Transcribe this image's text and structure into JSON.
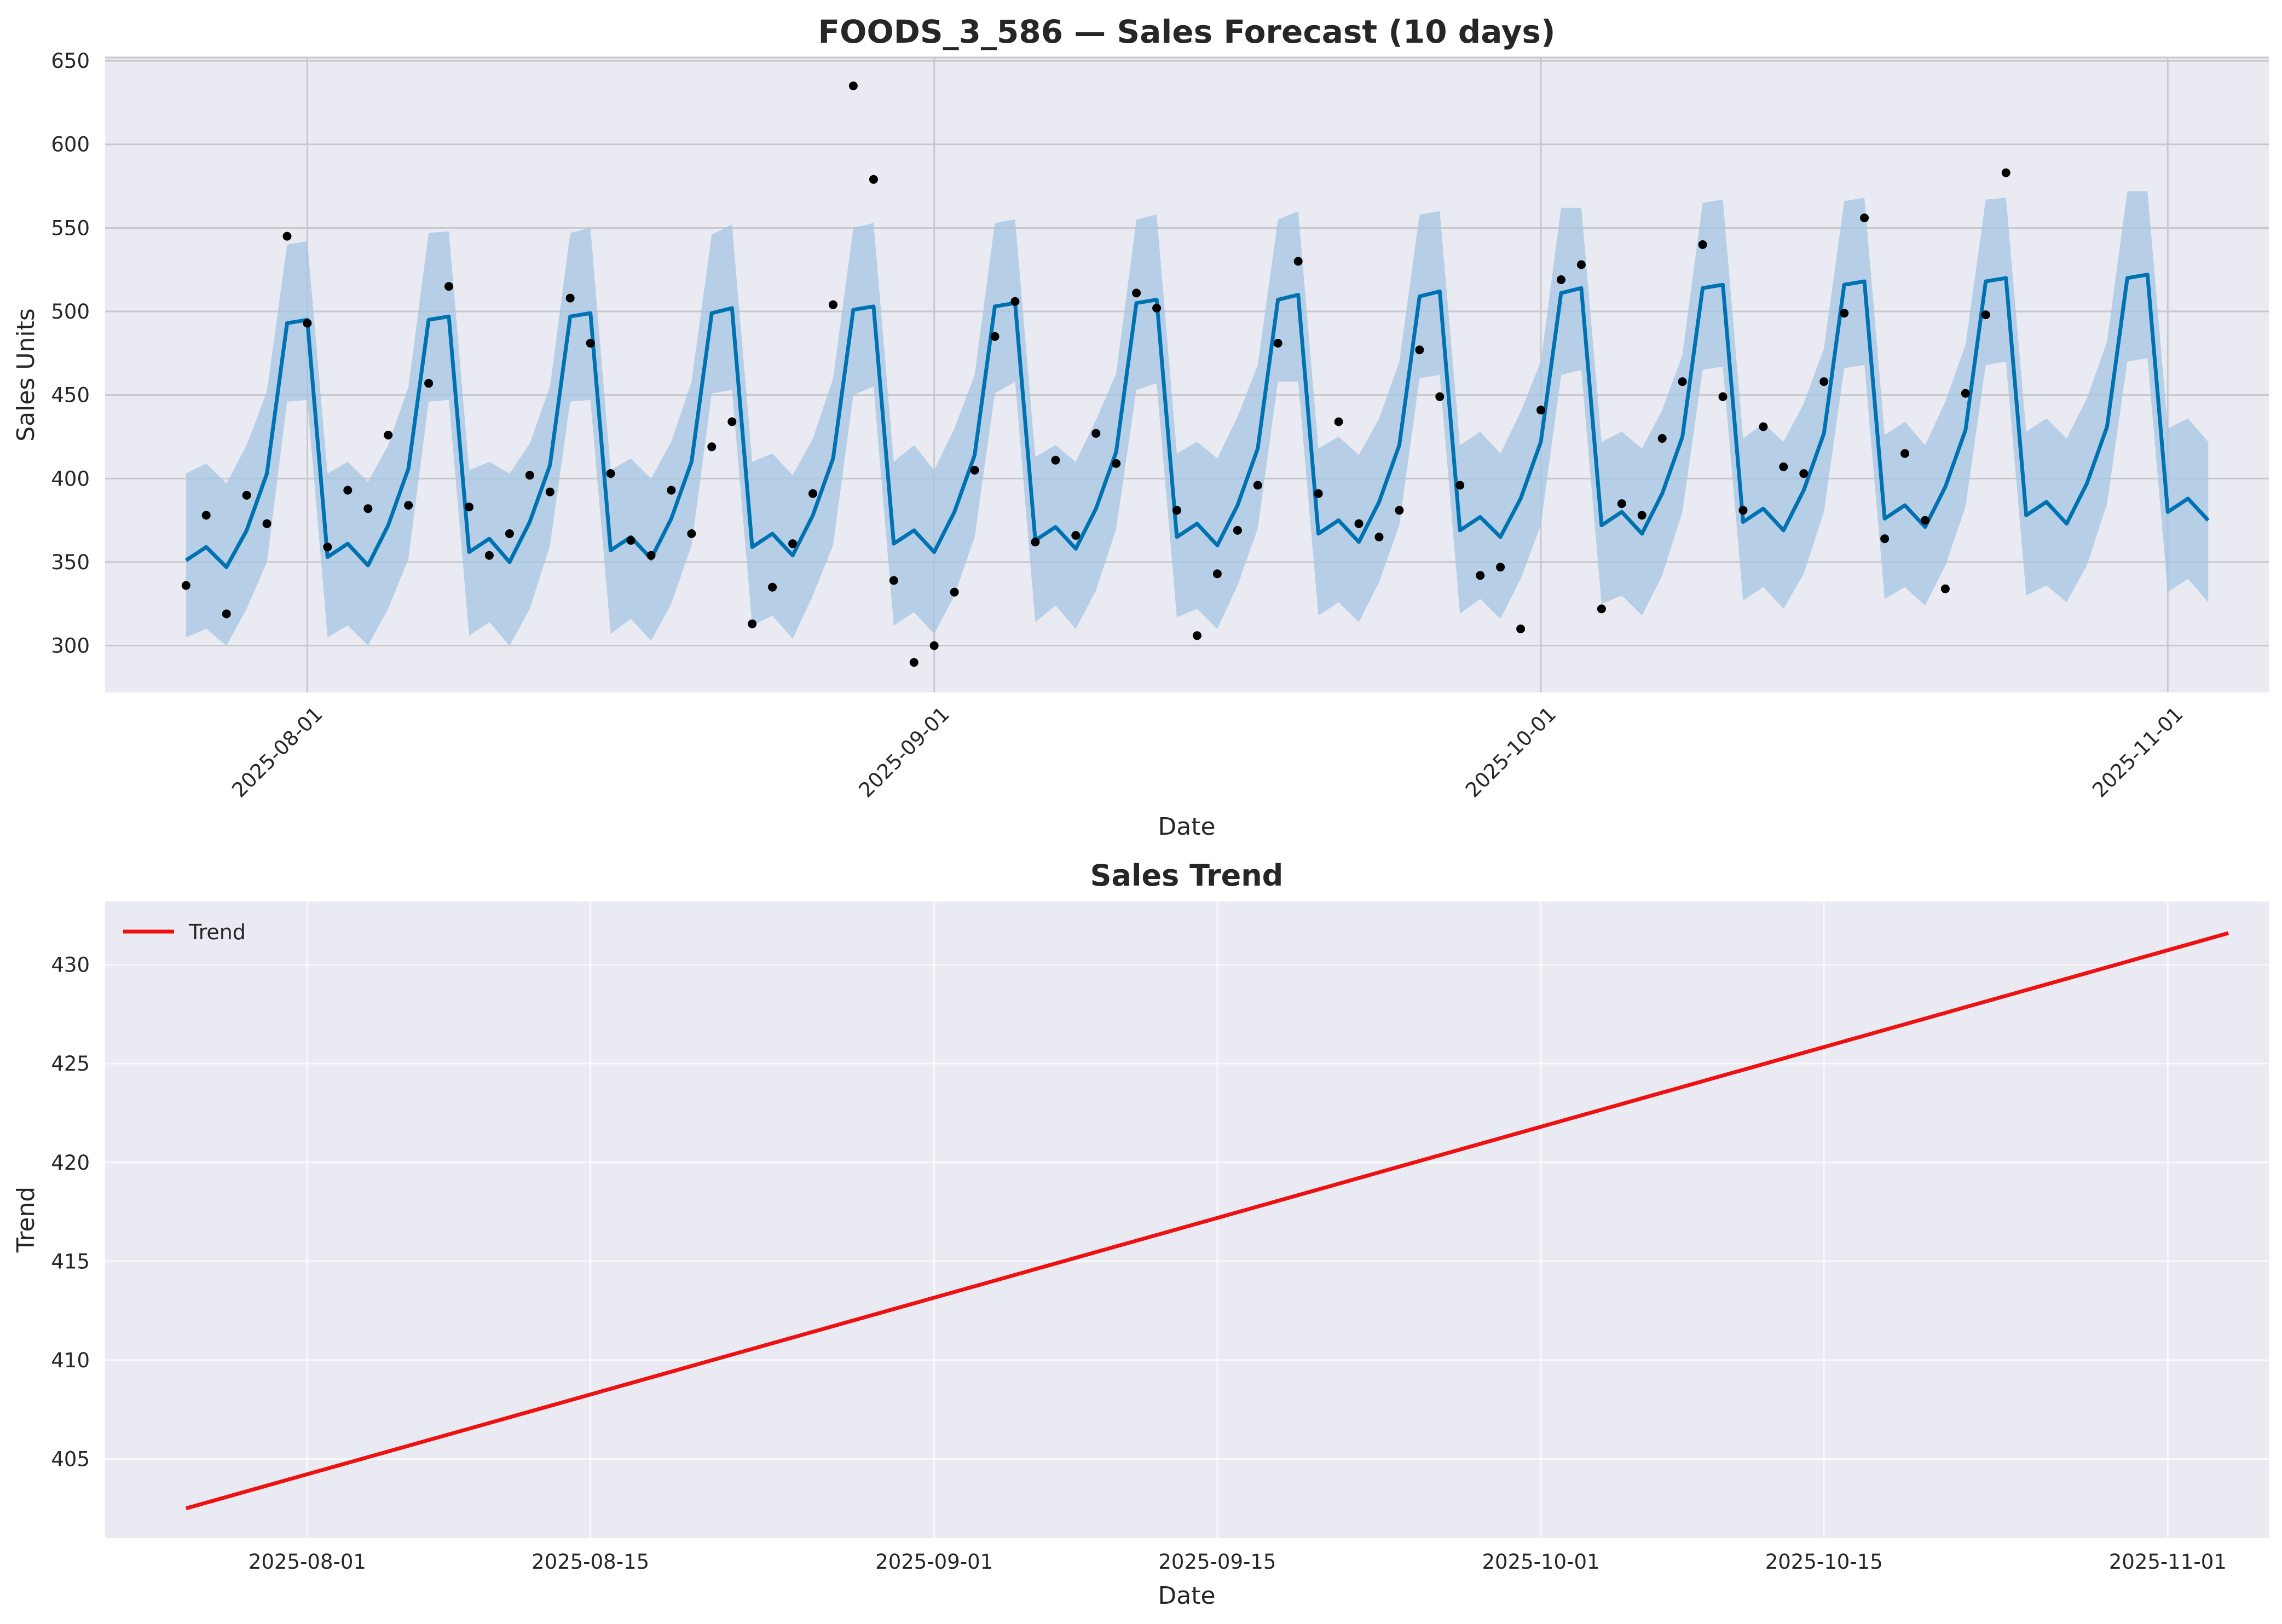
{
  "chart_data": [
    {
      "type": "line",
      "title": "FOODS_3_586 — Sales Forecast (10 days)",
      "xlabel": "Date",
      "ylabel": "Sales Units",
      "xlim": [
        "2025-07-22",
        "2025-11-06"
      ],
      "ylim": [
        272,
        652
      ],
      "xticks": [
        "2025-08-01",
        "2025-09-01",
        "2025-10-01",
        "2025-11-01"
      ],
      "yticks": [
        300,
        350,
        400,
        450,
        500,
        550,
        600,
        650
      ],
      "grid": true,
      "start_date": "2025-07-26",
      "colors": {
        "forecast": "#0072b2",
        "band": "#a6c6e1",
        "actual": "#000000",
        "background": "#eaeaf2",
        "grid": "#c8c8cc"
      },
      "series": [
        {
          "name": "yhat",
          "values": [
            351,
            359,
            347,
            369,
            403,
            493,
            495,
            353,
            361,
            348,
            372,
            406,
            495,
            497,
            356,
            364,
            350,
            374,
            408,
            497,
            499,
            357,
            365,
            352,
            376,
            410,
            499,
            502,
            359,
            367,
            354,
            378,
            412,
            501,
            503,
            361,
            369,
            356,
            380,
            414,
            503,
            505,
            363,
            371,
            358,
            382,
            416,
            505,
            507,
            365,
            373,
            360,
            384,
            418,
            507,
            510,
            367,
            375,
            362,
            386,
            420,
            509,
            512,
            369,
            377,
            365,
            388,
            422,
            511,
            514,
            372,
            380,
            367,
            391,
            425,
            514,
            516,
            374,
            382,
            369,
            393,
            427,
            516,
            518,
            376,
            384,
            371,
            395,
            429,
            518,
            520,
            378,
            386,
            373,
            397,
            431,
            520,
            522,
            380,
            388,
            375
          ]
        },
        {
          "name": "yhat_lower",
          "values": [
            305,
            310,
            300,
            322,
            350,
            446,
            447,
            305,
            312,
            300,
            322,
            352,
            446,
            447,
            306,
            314,
            300,
            322,
            360,
            446,
            447,
            307,
            316,
            303,
            325,
            360,
            451,
            453,
            312,
            318,
            304,
            330,
            360,
            450,
            455,
            312,
            320,
            307,
            330,
            365,
            451,
            458,
            314,
            324,
            310,
            333,
            370,
            453,
            457,
            317,
            322,
            310,
            336,
            370,
            458,
            458,
            318,
            326,
            314,
            338,
            372,
            460,
            462,
            319,
            328,
            316,
            340,
            372,
            462,
            465,
            325,
            330,
            318,
            342,
            380,
            465,
            467,
            327,
            335,
            322,
            343,
            380,
            466,
            468,
            328,
            335,
            324,
            348,
            383,
            468,
            470,
            330,
            336,
            326,
            348,
            385,
            470,
            472,
            332,
            340,
            326
          ]
        },
        {
          "name": "yhat_upper",
          "values": [
            403,
            409,
            397,
            420,
            452,
            540,
            542,
            403,
            410,
            398,
            420,
            455,
            547,
            548,
            405,
            410,
            403,
            421,
            455,
            547,
            550,
            405,
            412,
            400,
            422,
            458,
            546,
            552,
            410,
            415,
            402,
            424,
            460,
            550,
            553,
            410,
            420,
            405,
            430,
            462,
            553,
            555,
            413,
            420,
            410,
            435,
            463,
            555,
            558,
            415,
            422,
            412,
            437,
            468,
            555,
            560,
            418,
            425,
            414,
            436,
            470,
            558,
            560,
            420,
            428,
            415,
            440,
            470,
            562,
            562,
            422,
            428,
            418,
            441,
            474,
            565,
            567,
            424,
            433,
            422,
            445,
            478,
            566,
            568,
            426,
            434,
            420,
            446,
            480,
            567,
            568,
            428,
            436,
            424,
            448,
            482,
            572,
            572,
            430,
            436,
            422
          ]
        },
        {
          "name": "actual",
          "values": [
            336,
            378,
            319,
            390,
            373,
            545,
            493,
            359,
            393,
            382,
            426,
            384,
            457,
            515,
            383,
            354,
            367,
            402,
            392,
            508,
            481,
            403,
            363,
            354,
            393,
            367,
            419,
            434,
            313,
            335,
            361,
            391,
            504,
            635,
            579,
            339,
            290,
            300,
            332,
            405,
            485,
            506,
            362,
            411,
            366,
            427,
            409,
            511,
            502,
            381,
            306,
            343,
            369,
            396,
            481,
            530,
            391,
            434,
            373,
            365,
            381,
            477,
            449,
            396,
            342,
            347,
            310,
            441,
            519,
            528,
            322,
            385,
            378,
            424,
            458,
            540,
            449,
            381,
            431,
            407,
            403,
            458,
            499,
            556,
            364,
            415,
            375,
            334,
            451,
            498,
            583
          ]
        }
      ]
    },
    {
      "type": "line",
      "title": "Sales Trend",
      "xlabel": "Date",
      "ylabel": "Trend",
      "xlim": [
        "2025-07-22",
        "2025-11-06"
      ],
      "ylim": [
        401,
        433.2
      ],
      "xticks": [
        "2025-08-01",
        "2025-08-15",
        "2025-09-01",
        "2025-09-15",
        "2025-10-01",
        "2025-10-15",
        "2025-11-01"
      ],
      "yticks": [
        405,
        410,
        415,
        420,
        425,
        430
      ],
      "grid": true,
      "legend": "upper-left",
      "colors": {
        "trend": "#ee1111",
        "background": "#eaeaf2",
        "grid": "#ffffff"
      },
      "series": [
        {
          "name": "Trend",
          "x": [
            "2025-07-26",
            "2025-11-04"
          ],
          "values": [
            402.5,
            431.6
          ]
        }
      ]
    }
  ]
}
